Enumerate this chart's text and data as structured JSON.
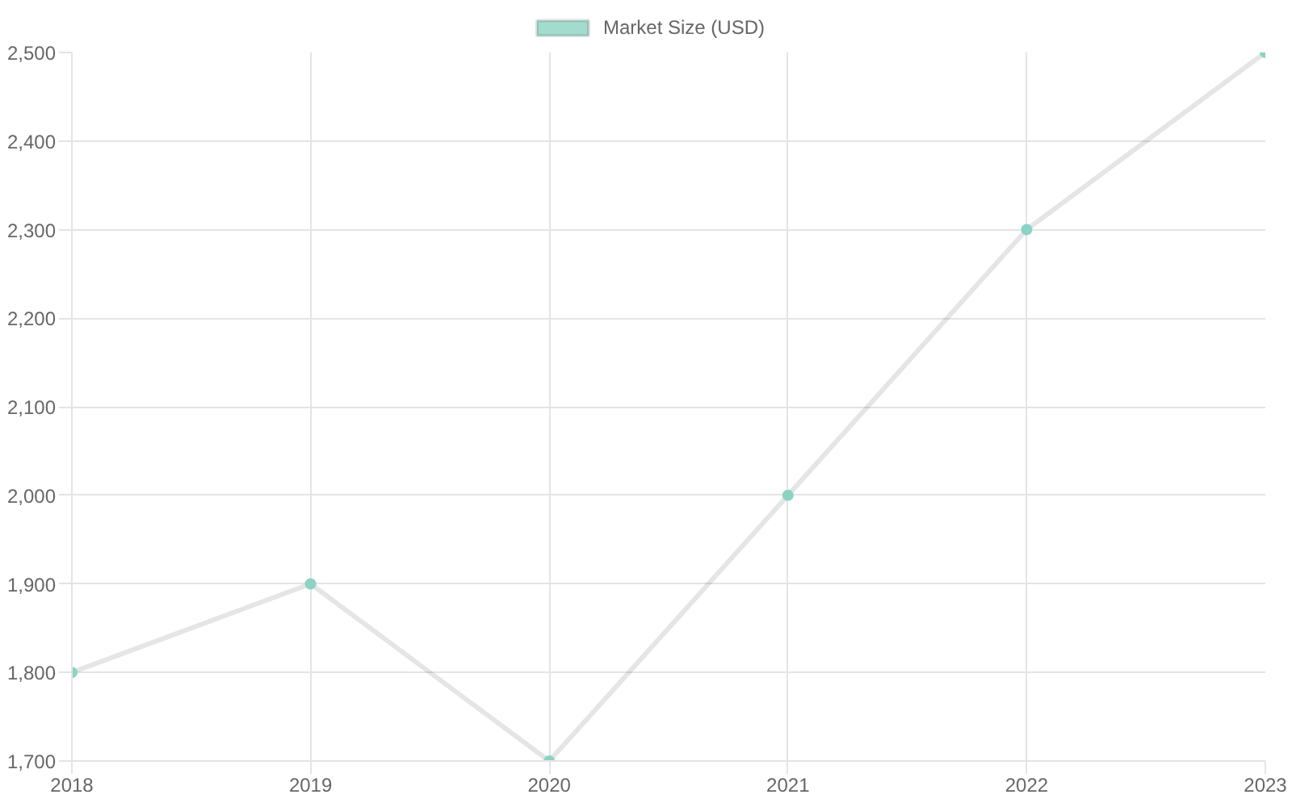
{
  "chart_data": {
    "type": "line",
    "categories": [
      "2018",
      "2019",
      "2020",
      "2021",
      "2022",
      "2023"
    ],
    "series": [
      {
        "name": "Market Size (USD)",
        "color": "#8cd3c3",
        "values": [
          1800,
          1900,
          1700,
          2000,
          2300,
          2500
        ]
      }
    ],
    "ylim": [
      1700,
      2500
    ],
    "yticks": [
      {
        "value": 1700,
        "label": "1,700"
      },
      {
        "value": 1800,
        "label": "1,800"
      },
      {
        "value": 1900,
        "label": "1,900"
      },
      {
        "value": 2000,
        "label": "2,000"
      },
      {
        "value": 2100,
        "label": "2,100"
      },
      {
        "value": 2200,
        "label": "2,200"
      },
      {
        "value": 2300,
        "label": "2,300"
      },
      {
        "value": 2400,
        "label": "2,400"
      },
      {
        "value": 2500,
        "label": "2,500"
      }
    ],
    "grid": true,
    "legend": "top",
    "marker": "circle",
    "line_style": "solid"
  }
}
